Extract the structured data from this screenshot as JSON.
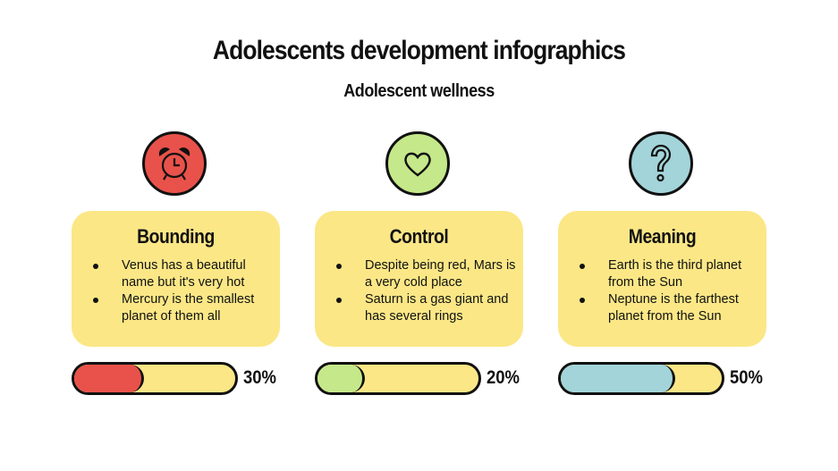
{
  "header": {
    "title": "Adolescents development infographics",
    "subtitle": "Adolescent wellness"
  },
  "colors": {
    "card": "#fbe786",
    "outline": "#111111"
  },
  "columns": [
    {
      "heading": "Bounding",
      "icon": "alarm-clock-icon",
      "color": "#e8524a",
      "bullets": [
        "Venus has a beautiful name but it's very hot",
        "Mercury is the smallest planet of them all"
      ],
      "percent": 30,
      "percent_label": "30%"
    },
    {
      "heading": "Control",
      "icon": "heart-icon",
      "color": "#c5e88a",
      "bullets": [
        "Despite being red, Mars is a very cold place",
        "Saturn is a gas giant and has several rings"
      ],
      "percent": 20,
      "percent_label": "20%"
    },
    {
      "heading": "Meaning",
      "icon": "question-mark-icon",
      "color": "#a2d4d9",
      "bullets": [
        "Earth is the third planet from the Sun",
        "Neptune is the farthest planet from the Sun"
      ],
      "percent": 50,
      "percent_label": "50%"
    }
  ]
}
